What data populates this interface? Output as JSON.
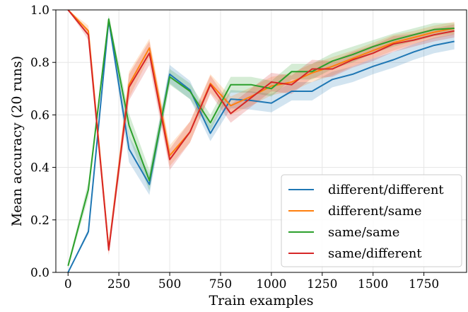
{
  "chart_data": {
    "type": "line",
    "title": "",
    "xlabel": "Train examples",
    "ylabel": "Mean accuracy (20 runs)",
    "xlim": [
      -60,
      1960
    ],
    "ylim": [
      0,
      1.0
    ],
    "xticks": [
      0,
      250,
      500,
      750,
      1000,
      1250,
      1500,
      1750
    ],
    "yticks": [
      0.0,
      0.2,
      0.4,
      0.6,
      0.8,
      1.0
    ],
    "xtick_labels": [
      "0",
      "250",
      "500",
      "750",
      "1000",
      "1250",
      "1500",
      "1750"
    ],
    "ytick_labels": [
      "0.0",
      "0.2",
      "0.4",
      "0.6",
      "0.8",
      "1.0"
    ],
    "grid": true,
    "legend_position": "lower-right",
    "x": [
      0,
      100,
      200,
      300,
      400,
      500,
      600,
      700,
      800,
      900,
      1000,
      1100,
      1200,
      1300,
      1400,
      1500,
      1600,
      1700,
      1800,
      1900
    ],
    "series": [
      {
        "name": "different/different",
        "color": "#1f77b4",
        "values": [
          0.0,
          0.155,
          0.96,
          0.47,
          0.335,
          0.755,
          0.695,
          0.53,
          0.66,
          0.655,
          0.645,
          0.69,
          0.69,
          0.735,
          0.755,
          0.785,
          0.81,
          0.84,
          0.865,
          0.88
        ],
        "band": [
          0.0,
          0.01,
          0.015,
          0.05,
          0.04,
          0.035,
          0.035,
          0.03,
          0.035,
          0.035,
          0.035,
          0.035,
          0.035,
          0.03,
          0.03,
          0.03,
          0.03,
          0.03,
          0.03,
          0.03
        ]
      },
      {
        "name": "different/same",
        "color": "#ff7f0e",
        "values": [
          1.0,
          0.92,
          0.09,
          0.715,
          0.855,
          0.445,
          0.535,
          0.72,
          0.635,
          0.67,
          0.71,
          0.725,
          0.76,
          0.785,
          0.815,
          0.845,
          0.875,
          0.895,
          0.915,
          0.93
        ],
        "band": [
          0.0,
          0.02,
          0.02,
          0.05,
          0.035,
          0.04,
          0.04,
          0.035,
          0.035,
          0.035,
          0.035,
          0.035,
          0.035,
          0.035,
          0.03,
          0.03,
          0.03,
          0.025,
          0.025,
          0.025
        ]
      },
      {
        "name": "same/same",
        "color": "#2ca02c",
        "values": [
          0.025,
          0.315,
          0.965,
          0.56,
          0.35,
          0.745,
          0.69,
          0.57,
          0.715,
          0.715,
          0.7,
          0.765,
          0.765,
          0.805,
          0.83,
          0.86,
          0.885,
          0.905,
          0.925,
          0.93
        ],
        "band": [
          0.01,
          0.03,
          0.015,
          0.045,
          0.04,
          0.03,
          0.03,
          0.03,
          0.03,
          0.03,
          0.03,
          0.03,
          0.03,
          0.03,
          0.03,
          0.025,
          0.025,
          0.025,
          0.025,
          0.02
        ]
      },
      {
        "name": "same/different",
        "color": "#d62728",
        "values": [
          1.0,
          0.905,
          0.085,
          0.705,
          0.835,
          0.43,
          0.535,
          0.715,
          0.605,
          0.665,
          0.725,
          0.715,
          0.775,
          0.775,
          0.81,
          0.835,
          0.87,
          0.885,
          0.905,
          0.92
        ],
        "band": [
          0.0,
          0.02,
          0.02,
          0.05,
          0.045,
          0.04,
          0.04,
          0.035,
          0.035,
          0.035,
          0.035,
          0.035,
          0.035,
          0.03,
          0.03,
          0.03,
          0.03,
          0.025,
          0.025,
          0.025
        ]
      }
    ]
  }
}
